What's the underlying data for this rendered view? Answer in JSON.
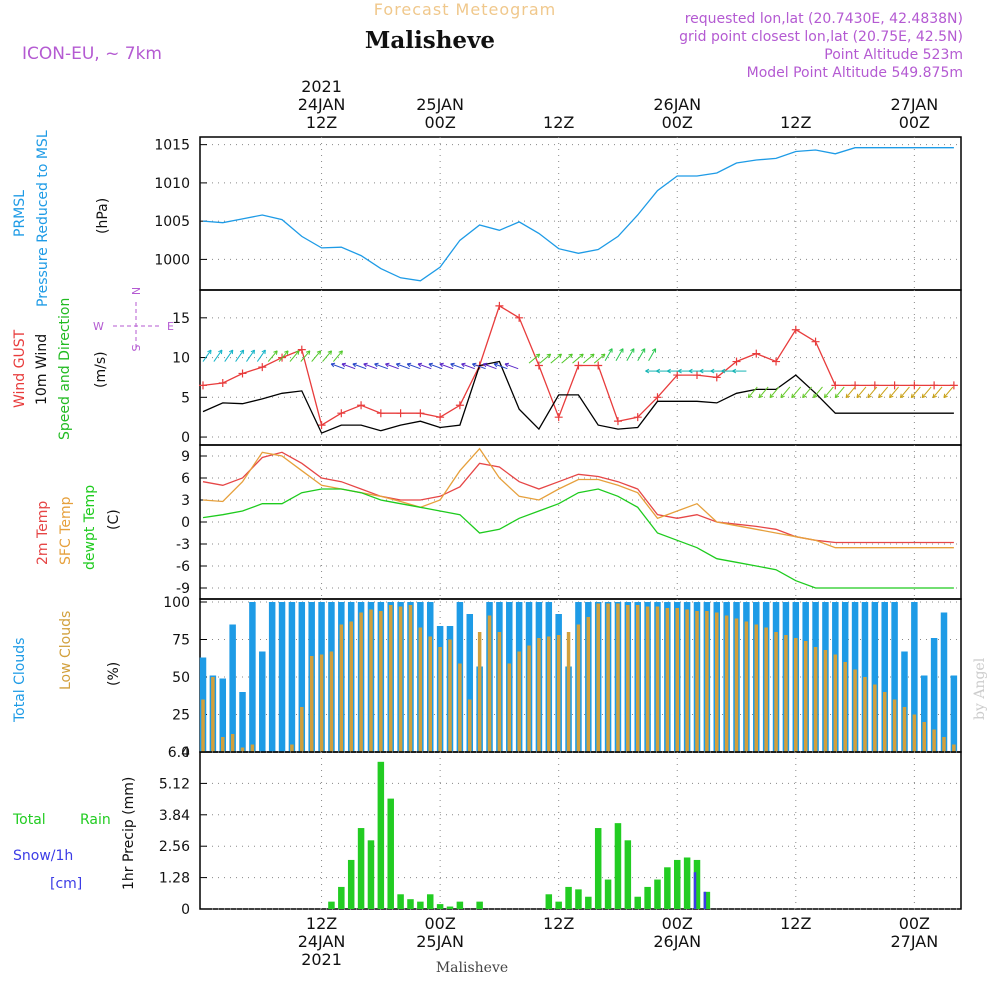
{
  "header": {
    "super_title": "Forecast Meteogram",
    "location": "Malisheve",
    "model": "ICON-EU, ~ 7km",
    "requested": "requested lon,lat (20.7430E, 42.4838N)",
    "grid": "grid point closest lon,lat (20.75E, 42.5N)",
    "point_alt": "Point Altitude 523m",
    "model_alt": "Model Point Altitude 549.875m",
    "credit": "by Angel",
    "footer_location": "Malisheve"
  },
  "colors": {
    "pressure": "#1e9be6",
    "gust": "#e83c3c",
    "wind": "#000000",
    "wind_dir_label": "#22bb22",
    "compass": "#b45ad2",
    "t2m": "#e64646",
    "sfc": "#e6a03c",
    "dewpt": "#1ecb1e",
    "total_clouds": "#1e9be6",
    "low_clouds": "#d2a03c",
    "rain": "#22cc22",
    "snow": "#3c3ce6",
    "header_purple": "#b45ad2",
    "super_title": "#f0c88c"
  },
  "time_axis": {
    "top_labels": [
      {
        "hour": "12Z",
        "day": "24JAN",
        "year": "2021"
      },
      {
        "hour": "00Z",
        "day": "25JAN",
        "year": ""
      },
      {
        "hour": "12Z",
        "day": "",
        "year": ""
      },
      {
        "hour": "00Z",
        "day": "26JAN",
        "year": ""
      },
      {
        "hour": "12Z",
        "day": "",
        "year": ""
      },
      {
        "hour": "00Z",
        "day": "27JAN",
        "year": ""
      }
    ],
    "bottom_labels": [
      {
        "hour": "12Z",
        "day": "24JAN",
        "year": "2021"
      },
      {
        "hour": "00Z",
        "day": "25JAN",
        "year": ""
      },
      {
        "hour": "12Z",
        "day": "",
        "year": ""
      },
      {
        "hour": "00Z",
        "day": "26JAN",
        "year": ""
      },
      {
        "hour": "12Z",
        "day": "",
        "year": ""
      },
      {
        "hour": "00Z",
        "day": "27JAN",
        "year": ""
      }
    ]
  },
  "labels": {
    "pressure": {
      "l1": "PRMSL",
      "l2": "Pressure Reduced to MSL",
      "unit": "(hPa)"
    },
    "wind": {
      "l1": "Wind GUST",
      "l2": "10m Wind",
      "l3": "Speed and Direction",
      "unit": "(m/s)"
    },
    "compass": {
      "w": "W",
      "e": "E",
      "n": "N",
      "s": "S"
    },
    "temp": {
      "l1": "2m Temp",
      "l2": "SFC Temp",
      "l3": "dewpt Temp",
      "unit": "(C)"
    },
    "clouds": {
      "l1": "Total Clouds",
      "l2": "Low Clouds",
      "unit": "(%)"
    },
    "precip": {
      "l1": "Total",
      "l1b": "Rain",
      "l2": "Snow/1h",
      "l3": "[cm]",
      "unit": "1hr Precip (mm)"
    }
  },
  "chart_data": [
    {
      "type": "line",
      "title": "PRMSL Pressure Reduced to MSL",
      "ylabel": "(hPa)",
      "ylim": [
        996,
        1016
      ],
      "yticks": [
        1000,
        1005,
        1010,
        1015
      ],
      "x_hours": [
        0,
        2,
        4,
        6,
        8,
        10,
        12,
        14,
        16,
        18,
        20,
        22,
        24,
        26,
        28,
        30,
        32,
        34,
        36,
        38,
        40,
        42,
        44,
        46,
        48,
        50,
        52,
        54,
        56,
        58,
        60,
        62,
        64,
        66,
        68,
        70,
        72,
        74,
        76
      ],
      "series": [
        {
          "name": "PRMSL",
          "values": [
            1005.0,
            1004.8,
            1005.3,
            1005.8,
            1005.2,
            1003.0,
            1001.5,
            1001.6,
            1000.5,
            998.8,
            997.6,
            997.2,
            999.0,
            1002.5,
            1004.5,
            1003.8,
            1004.9,
            1003.4,
            1001.4,
            1000.8,
            1001.3,
            1003.0,
            1005.8,
            1009.0,
            1010.9,
            1010.9,
            1011.3,
            1012.6,
            1013.0,
            1013.2,
            1014.1,
            1014.3,
            1013.8,
            1014.6,
            1014.6,
            1014.6,
            1014.6,
            1014.6,
            1014.6
          ]
        }
      ]
    },
    {
      "type": "line",
      "title": "Wind GUST / 10m Wind Speed and Direction",
      "ylabel": "(m/s)",
      "ylim": [
        -1,
        18.5
      ],
      "yticks": [
        0,
        5,
        10,
        15
      ],
      "x_hours": [
        0,
        2,
        4,
        6,
        8,
        10,
        12,
        14,
        16,
        18,
        20,
        22,
        24,
        26,
        28,
        30,
        32,
        34,
        36,
        38,
        40,
        42,
        44,
        46,
        48,
        50,
        52,
        54,
        56,
        58,
        60,
        62,
        64,
        66,
        68,
        70,
        72,
        74,
        76
      ],
      "series": [
        {
          "name": "Wind GUST",
          "values": [
            6.5,
            6.8,
            8.0,
            8.8,
            10.0,
            11.0,
            1.5,
            3.0,
            4.0,
            3.0,
            3.0,
            3.0,
            2.5,
            4.0,
            9.0,
            16.5,
            15.0,
            9.0,
            2.5,
            9.0,
            9.0,
            2.0,
            2.5,
            5.0,
            7.8,
            7.8,
            7.5,
            9.5,
            10.5,
            9.5,
            13.5,
            12.0,
            6.5,
            6.5,
            6.5,
            6.5,
            6.5,
            6.5,
            6.5
          ]
        },
        {
          "name": "10m Wind",
          "values": [
            3.2,
            4.3,
            4.2,
            4.8,
            5.5,
            5.8,
            0.5,
            1.5,
            1.5,
            0.8,
            1.5,
            2.0,
            1.2,
            1.5,
            9.0,
            9.5,
            3.5,
            1.0,
            5.3,
            5.3,
            1.5,
            1.0,
            1.2,
            4.5,
            4.5,
            4.5,
            4.3,
            5.5,
            6.0,
            6.0,
            7.8,
            5.5,
            3.0,
            3.0,
            3.0,
            3.0,
            3.0,
            3.0,
            3.0
          ]
        }
      ]
    },
    {
      "type": "line",
      "title": "2m Temp / SFC Temp / dewpt Temp",
      "ylabel": "(C)",
      "ylim": [
        -10.5,
        10.5
      ],
      "yticks": [
        -9,
        -6,
        -3,
        0,
        3,
        6,
        9
      ],
      "x_hours": [
        0,
        2,
        4,
        6,
        8,
        10,
        12,
        14,
        16,
        18,
        20,
        22,
        24,
        26,
        28,
        30,
        32,
        34,
        36,
        38,
        40,
        42,
        44,
        46,
        48,
        50,
        52,
        54,
        56,
        58,
        60,
        62,
        64,
        66,
        68,
        70,
        72,
        74,
        76
      ],
      "series": [
        {
          "name": "2m Temp",
          "values": [
            5.5,
            5.0,
            6.0,
            8.8,
            9.5,
            8.0,
            6.0,
            5.5,
            4.5,
            3.5,
            3.0,
            3.0,
            3.5,
            4.8,
            8.0,
            7.5,
            5.5,
            4.5,
            5.5,
            6.5,
            6.2,
            5.5,
            4.5,
            1.0,
            0.5,
            1.0,
            0.0,
            -0.3,
            -0.6,
            -1.0,
            -2.0,
            -2.5,
            -2.8,
            -2.8,
            -2.8,
            -2.8,
            -2.8,
            -2.8,
            -2.8
          ]
        },
        {
          "name": "SFC Temp",
          "values": [
            3.0,
            2.8,
            5.5,
            9.5,
            9.0,
            7.0,
            5.0,
            4.5,
            4.0,
            3.5,
            2.8,
            2.0,
            3.0,
            7.0,
            10.0,
            6.0,
            3.5,
            3.0,
            4.5,
            5.8,
            5.8,
            5.0,
            4.0,
            0.5,
            1.5,
            2.5,
            0.0,
            -0.5,
            -1.0,
            -1.5,
            -2.0,
            -2.5,
            -3.5,
            -3.5,
            -3.5,
            -3.5,
            -3.5,
            -3.5,
            -3.5
          ]
        },
        {
          "name": "dewpt Temp",
          "values": [
            0.6,
            1.0,
            1.5,
            2.5,
            2.5,
            4.0,
            4.5,
            4.5,
            4.0,
            3.0,
            2.5,
            2.0,
            1.5,
            1.0,
            -1.5,
            -1.0,
            0.5,
            1.5,
            2.5,
            4.0,
            4.5,
            3.5,
            2.0,
            -1.5,
            -2.5,
            -3.5,
            -5.0,
            -5.5,
            -6.0,
            -6.5,
            -8.0,
            -9.0,
            -9.0,
            -9.0,
            -9.0,
            -9.0,
            -9.0,
            -9.0,
            -9.0
          ]
        }
      ]
    },
    {
      "type": "bar",
      "title": "Total Clouds / Low Clouds",
      "ylabel": "(%)",
      "ylim": [
        0,
        102
      ],
      "yticks": [
        0,
        25,
        50,
        75,
        100
      ],
      "x_hours": [
        0,
        1,
        2,
        3,
        4,
        5,
        6,
        7,
        8,
        9,
        10,
        11,
        12,
        13,
        14,
        15,
        16,
        17,
        18,
        19,
        20,
        21,
        22,
        23,
        24,
        25,
        26,
        27,
        28,
        29,
        30,
        31,
        32,
        33,
        34,
        35,
        36,
        37,
        38,
        39,
        40,
        41,
        42,
        43,
        44,
        45,
        46,
        47,
        48,
        49,
        50,
        51,
        52,
        53,
        54,
        55,
        56,
        57,
        58,
        59,
        60,
        61,
        62,
        63,
        64,
        65,
        66,
        67,
        68,
        69,
        70,
        71,
        72,
        73,
        74,
        75,
        76
      ],
      "series": [
        {
          "name": "Total Clouds",
          "values": [
            63,
            51,
            49,
            85,
            40,
            100,
            67,
            100,
            100,
            100,
            100,
            100,
            100,
            100,
            100,
            100,
            100,
            100,
            100,
            100,
            100,
            100,
            100,
            100,
            84,
            84,
            100,
            92,
            57,
            100,
            100,
            100,
            100,
            100,
            100,
            100,
            92,
            57,
            100,
            100,
            100,
            100,
            100,
            100,
            100,
            100,
            100,
            100,
            100,
            100,
            100,
            100,
            100,
            100,
            100,
            100,
            100,
            100,
            100,
            100,
            100,
            100,
            100,
            100,
            100,
            100,
            100,
            100,
            100,
            100,
            100,
            67,
            100,
            51,
            76,
            93,
            51
          ]
        },
        {
          "name": "Low Clouds",
          "values": [
            35,
            50,
            10,
            12,
            3,
            5,
            0,
            0,
            0,
            5,
            30,
            64,
            65,
            67,
            85,
            87,
            93,
            95,
            94,
            98,
            97,
            98,
            83,
            77,
            70,
            75,
            59,
            35,
            80,
            91,
            80,
            59,
            67,
            71,
            76,
            77,
            78,
            80,
            85,
            90,
            99,
            99,
            99,
            98,
            98,
            97,
            97,
            96,
            96,
            95,
            94,
            94,
            93,
            91,
            89,
            87,
            85,
            83,
            80,
            78,
            76,
            74,
            70,
            68,
            65,
            60,
            55,
            50,
            45,
            40,
            35,
            30,
            25,
            20,
            15,
            10,
            5
          ]
        }
      ]
    },
    {
      "type": "bar",
      "title": "Total Rain / Snow 1hr Precip",
      "ylabel": "1hr Precip (mm)",
      "ylim": [
        0,
        6.4
      ],
      "yticks": [
        0,
        1.28,
        2.56,
        3.84,
        5.12,
        6.4
      ],
      "x_hours": [
        13,
        14,
        15,
        16,
        17,
        18,
        19,
        20,
        21,
        22,
        23,
        24,
        25,
        26,
        28,
        35,
        36,
        37,
        38,
        39,
        40,
        41,
        42,
        43,
        44,
        45,
        46,
        47,
        48,
        49,
        50,
        51
      ],
      "series": [
        {
          "name": "Total Rain",
          "values": [
            0.3,
            0.9,
            2.0,
            3.3,
            2.8,
            6.0,
            4.5,
            0.6,
            0.4,
            0.3,
            0.6,
            0.2,
            0.1,
            0.3,
            0.3,
            0.6,
            0.3,
            0.9,
            0.8,
            0.5,
            3.3,
            1.2,
            3.5,
            2.8,
            0.5,
            0.9,
            1.2,
            1.7,
            2.0,
            2.1,
            2.0,
            0.7
          ]
        },
        {
          "name": "Snow/1h",
          "values": [
            0,
            0,
            0,
            0,
            0,
            0,
            0,
            0,
            0,
            0,
            0,
            0,
            0,
            0,
            0,
            0,
            0,
            0,
            0,
            0,
            0,
            0,
            0,
            0,
            0,
            0,
            0,
            0,
            0,
            0,
            1.5,
            0.7
          ]
        }
      ]
    }
  ]
}
